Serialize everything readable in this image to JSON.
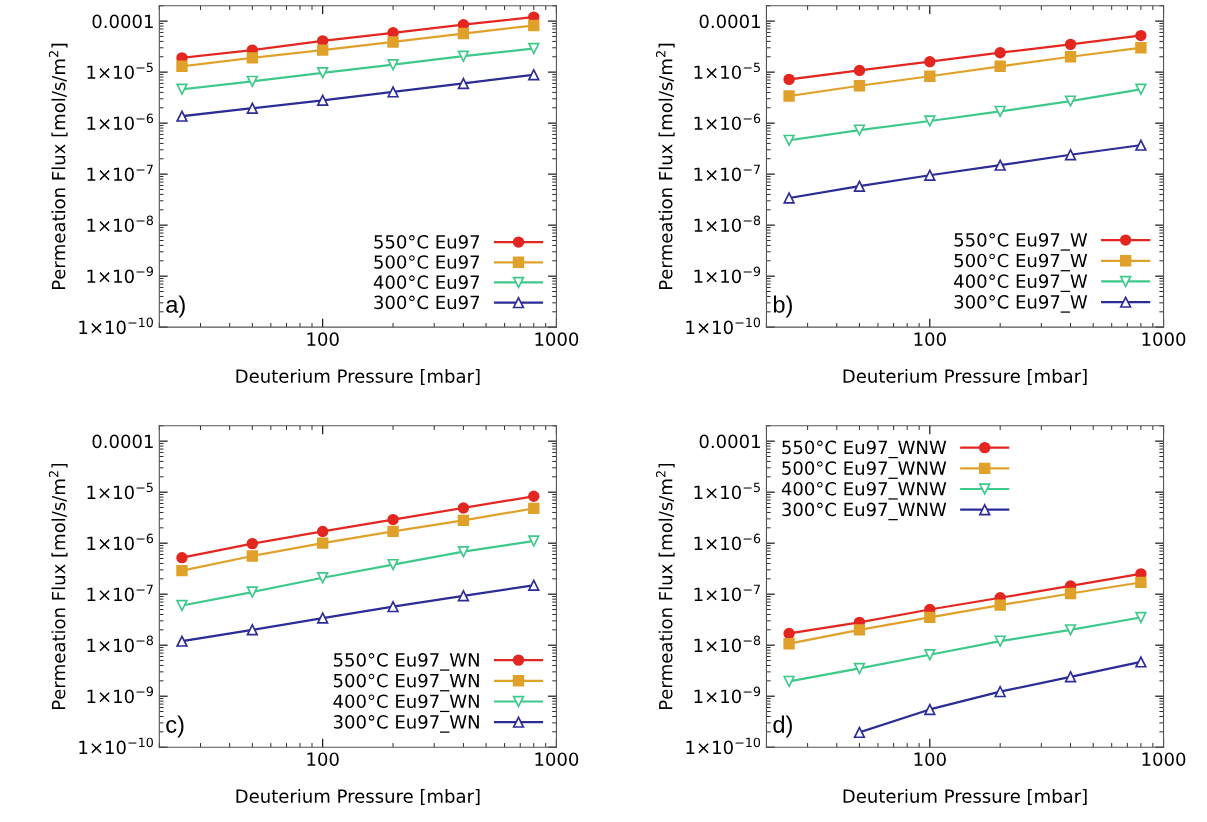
{
  "chart_data": [
    {
      "type": "line",
      "xlabel": "Deuterium Pressure [mbar]",
      "ylabel": "Permeation Flux [mol/s/m$^{2}$]",
      "log": "xy",
      "legend": "bottom right",
      "grid": false,
      "xlim": [
        20,
        1000
      ],
      "xticks": [
        100,
        1000
      ],
      "ylim": [
        1e-10,
        0.0002
      ],
      "yticks": [
        {
          "value": 0.0001,
          "label": "0.0001"
        },
        {
          "value": 1e-05,
          "label": "1×10$^{−5}$"
        },
        {
          "value": 1e-06,
          "label": "1×10$^{−6}$"
        },
        {
          "value": 1e-07,
          "label": "1×10$^{−7}$"
        },
        {
          "value": 1e-08,
          "label": "1×10$^{−8}$"
        },
        {
          "value": 1e-09,
          "label": "1×10$^{−9}$"
        },
        {
          "value": 1e-10,
          "label": "1×10$^{−10}$"
        }
      ],
      "annotations": [
        "a)"
      ],
      "x": [
        25,
        50,
        100,
        200,
        400,
        800
      ],
      "series": [
        {
          "name": "550°C Eu97",
          "color": "#e32620",
          "marker": "circle",
          "values": [
            1.9e-05,
            2.7e-05,
            4.1e-05,
            5.9e-05,
            8.5e-05,
            0.00012
          ]
        },
        {
          "name": "500°C Eu97",
          "color": "#e0a12a",
          "marker": "square",
          "values": [
            1.3e-05,
            1.9e-05,
            2.7e-05,
            3.9e-05,
            5.7e-05,
            8.2e-05
          ]
        },
        {
          "name": "400°C Eu97",
          "color": "#3ec98a",
          "marker": "triangle_down",
          "values": [
            4.6e-06,
            6.6e-06,
            9.7e-06,
            1.4e-05,
            2.05e-05,
            2.9e-05
          ]
        },
        {
          "name": "300°C Eu97",
          "color": "#2c2c96",
          "marker": "triangle",
          "values": [
            1.37e-06,
            1.96e-06,
            2.8e-06,
            4.1e-06,
            6e-06,
            8.9e-06
          ]
        }
      ]
    },
    {
      "type": "line",
      "xlabel": "Deuterium Pressure [mbar]",
      "ylabel": "Permeation Flux [mol/s/m$^{2}$]",
      "log": "xy",
      "legend": "bottom right",
      "grid": false,
      "xlim": [
        20,
        1000
      ],
      "xticks": [
        100,
        1000
      ],
      "ylim": [
        1e-10,
        0.0002
      ],
      "yticks": [
        {
          "value": 0.0001,
          "label": "0.0001"
        },
        {
          "value": 1e-05,
          "label": "1×10$^{−5}$"
        },
        {
          "value": 1e-06,
          "label": "1×10$^{−6}$"
        },
        {
          "value": 1e-07,
          "label": "1×10$^{−7}$"
        },
        {
          "value": 1e-08,
          "label": "1×10$^{−8}$"
        },
        {
          "value": 1e-09,
          "label": "1×10$^{−9}$"
        },
        {
          "value": 1e-10,
          "label": "1×10$^{−10}$"
        }
      ],
      "annotations": [
        "b)"
      ],
      "x": [
        25,
        50,
        100,
        200,
        400,
        800
      ],
      "series": [
        {
          "name": "550°C Eu97_W",
          "color": "#e32620",
          "marker": "circle",
          "values": [
            7.2e-06,
            1.08e-05,
            1.6e-05,
            2.4e-05,
            3.5e-05,
            5.2e-05
          ]
        },
        {
          "name": "500°C Eu97_W",
          "color": "#e0a12a",
          "marker": "square",
          "values": [
            3.4e-06,
            5.4e-06,
            8.3e-06,
            1.3e-05,
            2e-05,
            3e-05
          ]
        },
        {
          "name": "400°C Eu97_W",
          "color": "#3ec98a",
          "marker": "triangle_down",
          "values": [
            4.6e-07,
            7.3e-07,
            1.1e-06,
            1.7e-06,
            2.7e-06,
            4.6e-06
          ]
        },
        {
          "name": "300°C Eu97_W",
          "color": "#2c2c96",
          "marker": "triangle",
          "values": [
            3.4e-08,
            5.8e-08,
            9.5e-08,
            1.5e-07,
            2.4e-07,
            3.7e-07
          ]
        }
      ]
    },
    {
      "type": "line",
      "xlabel": "Deuterium Pressure [mbar]",
      "ylabel": "Permeation Flux [mol/s/m$^{2}$]",
      "log": "xy",
      "legend": "bottom right",
      "grid": false,
      "xlim": [
        20,
        1000
      ],
      "xticks": [
        100,
        1000
      ],
      "ylim": [
        1e-10,
        0.0002
      ],
      "yticks": [
        {
          "value": 0.0001,
          "label": "0.0001"
        },
        {
          "value": 1e-05,
          "label": "1×10$^{−5}$"
        },
        {
          "value": 1e-06,
          "label": "1×10$^{−6}$"
        },
        {
          "value": 1e-07,
          "label": "1×10$^{−7}$"
        },
        {
          "value": 1e-08,
          "label": "1×10$^{−8}$"
        },
        {
          "value": 1e-09,
          "label": "1×10$^{−9}$"
        },
        {
          "value": 1e-10,
          "label": "1×10$^{−10}$"
        }
      ],
      "annotations": [
        "c)"
      ],
      "x": [
        25,
        50,
        100,
        200,
        400,
        800
      ],
      "series": [
        {
          "name": "550°C Eu97_WN",
          "color": "#e32620",
          "marker": "circle",
          "values": [
            5.2e-07,
            9.8e-07,
            1.7e-06,
            2.9e-06,
            4.9e-06,
            8.3e-06
          ]
        },
        {
          "name": "500°C Eu97_WN",
          "color": "#e0a12a",
          "marker": "square",
          "values": [
            2.9e-07,
            5.6e-07,
            1e-06,
            1.7e-06,
            2.8e-06,
            4.8e-06
          ]
        },
        {
          "name": "400°C Eu97_WN",
          "color": "#3ec98a",
          "marker": "triangle_down",
          "values": [
            6e-08,
            1.1e-07,
            2.1e-07,
            3.8e-07,
            6.8e-07,
            1.1e-06
          ]
        },
        {
          "name": "300°C Eu97_WN",
          "color": "#2c2c96",
          "marker": "triangle",
          "values": [
            1.2e-08,
            2e-08,
            3.4e-08,
            5.7e-08,
            9.3e-08,
            1.5e-07
          ]
        }
      ]
    },
    {
      "type": "line",
      "xlabel": "Deuterium Pressure [mbar]",
      "ylabel": "Permeation Flux [mol/s/m$^{2}$]",
      "log": "xy",
      "legend": "top left",
      "grid": false,
      "xlim": [
        20,
        1000
      ],
      "xticks": [
        100,
        1000
      ],
      "ylim": [
        1e-10,
        0.0002
      ],
      "yticks": [
        {
          "value": 0.0001,
          "label": "0.0001"
        },
        {
          "value": 1e-05,
          "label": "1×10$^{−5}$"
        },
        {
          "value": 1e-06,
          "label": "1×10$^{−6}$"
        },
        {
          "value": 1e-07,
          "label": "1×10$^{−7}$"
        },
        {
          "value": 1e-08,
          "label": "1×10$^{−8}$"
        },
        {
          "value": 1e-09,
          "label": "1×10$^{−9}$"
        },
        {
          "value": 1e-10,
          "label": "1×10$^{−10}$"
        }
      ],
      "annotations": [
        "d)"
      ],
      "x": [
        25,
        50,
        100,
        200,
        400,
        800
      ],
      "series": [
        {
          "name": "550°C Eu97_WNW",
          "color": "#e32620",
          "marker": "circle",
          "values": [
            1.7e-08,
            2.8e-08,
            5e-08,
            8.5e-08,
            1.45e-07,
            2.5e-07
          ]
        },
        {
          "name": "500°C Eu97_WNW",
          "color": "#e0a12a",
          "marker": "square",
          "values": [
            1.07e-08,
            2e-08,
            3.5e-08,
            6.1e-08,
            1.03e-07,
            1.7e-07
          ]
        },
        {
          "name": "400°C Eu97_WNW",
          "color": "#3ec98a",
          "marker": "triangle_down",
          "values": [
            1.95e-09,
            3.5e-09,
            6.5e-09,
            1.2e-08,
            2e-08,
            3.5e-08
          ]
        },
        {
          "name": "300°C Eu97_WNW",
          "color": "#2c2c96",
          "marker": "triangle",
          "values": [
            null,
            1.95e-10,
            5.5e-10,
            1.23e-09,
            2.4e-09,
            4.7e-09
          ]
        }
      ]
    }
  ]
}
